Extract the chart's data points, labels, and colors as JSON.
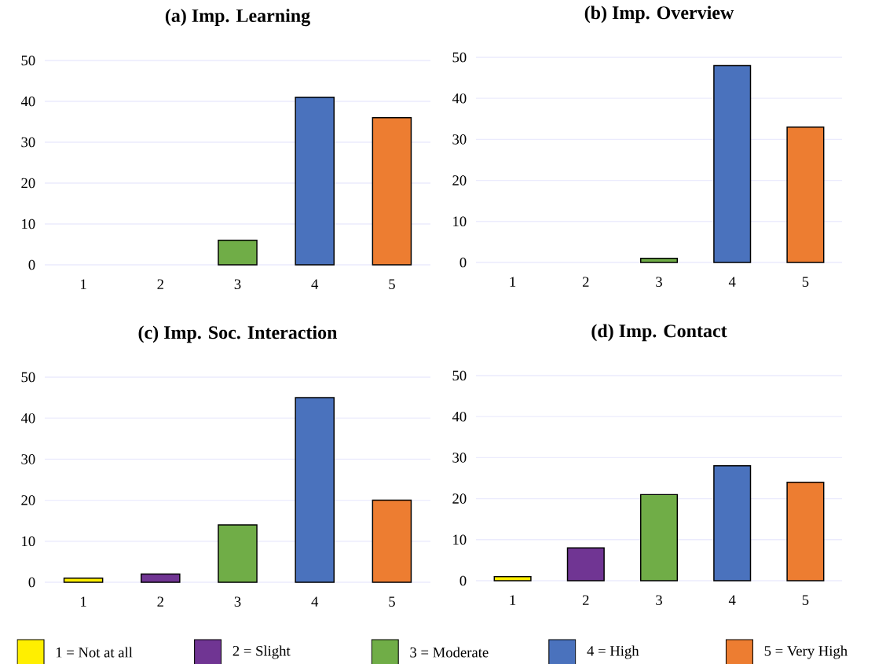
{
  "chart_data": [
    {
      "type": "bar",
      "title": "(a) Imp. Learning",
      "categories": [
        "1",
        "2",
        "3",
        "4",
        "5"
      ],
      "ylim": [
        0,
        50
      ],
      "yticks": [
        0,
        10,
        20,
        30,
        40,
        50
      ],
      "grid": "y",
      "legend": "bottom",
      "series": [
        {
          "name": "1 = Not at all",
          "color": "#ffef00",
          "values": [
            0,
            null,
            null,
            null,
            null
          ]
        },
        {
          "name": "2 = Slight",
          "color": "#703593",
          "values": [
            null,
            0,
            null,
            null,
            null
          ]
        },
        {
          "name": "3 = Moderate",
          "color": "#70ad47",
          "values": [
            null,
            null,
            6,
            null,
            null
          ]
        },
        {
          "name": "4 = High",
          "color": "#4a72bd",
          "values": [
            null,
            null,
            null,
            41,
            null
          ]
        },
        {
          "name": "5 = Very High",
          "color": "#ed7d31",
          "values": [
            null,
            null,
            null,
            null,
            36
          ]
        }
      ]
    },
    {
      "type": "bar",
      "title": "(b) Imp. Overview",
      "categories": [
        "1",
        "2",
        "3",
        "4",
        "5"
      ],
      "ylim": [
        0,
        50
      ],
      "yticks": [
        0,
        10,
        20,
        30,
        40,
        50
      ],
      "grid": "y",
      "series": [
        {
          "color": "#ffef00",
          "values": [
            0,
            null,
            null,
            null,
            null
          ]
        },
        {
          "color": "#703593",
          "values": [
            null,
            0,
            null,
            null,
            null
          ]
        },
        {
          "color": "#70ad47",
          "values": [
            null,
            null,
            1,
            null,
            null
          ]
        },
        {
          "color": "#4a72bd",
          "values": [
            null,
            null,
            null,
            48,
            null
          ]
        },
        {
          "color": "#ed7d31",
          "values": [
            null,
            null,
            null,
            null,
            33
          ]
        }
      ]
    },
    {
      "type": "bar",
      "title": "(c) Imp. Soc. Interaction",
      "categories": [
        "1",
        "2",
        "3",
        "4",
        "5"
      ],
      "ylim": [
        0,
        50
      ],
      "yticks": [
        0,
        10,
        20,
        30,
        40,
        50
      ],
      "grid": "y",
      "series": [
        {
          "color": "#ffef00",
          "values": [
            1,
            null,
            null,
            null,
            null
          ]
        },
        {
          "color": "#703593",
          "values": [
            null,
            2,
            null,
            null,
            null
          ]
        },
        {
          "color": "#70ad47",
          "values": [
            null,
            null,
            14,
            null,
            null
          ]
        },
        {
          "color": "#4a72bd",
          "values": [
            null,
            null,
            null,
            45,
            null
          ]
        },
        {
          "color": "#ed7d31",
          "values": [
            null,
            null,
            null,
            null,
            20
          ]
        }
      ]
    },
    {
      "type": "bar",
      "title": "(d) Imp. Contact",
      "categories": [
        "1",
        "2",
        "3",
        "4",
        "5"
      ],
      "ylim": [
        0,
        50
      ],
      "yticks": [
        0,
        10,
        20,
        30,
        40,
        50
      ],
      "grid": "y",
      "series": [
        {
          "color": "#ffef00",
          "values": [
            1,
            null,
            null,
            null,
            null
          ]
        },
        {
          "color": "#703593",
          "values": [
            null,
            8,
            null,
            null,
            null
          ]
        },
        {
          "color": "#70ad47",
          "values": [
            null,
            null,
            21,
            null,
            null
          ]
        },
        {
          "color": "#4a72bd",
          "values": [
            null,
            null,
            null,
            28,
            null
          ]
        },
        {
          "color": "#ed7d31",
          "values": [
            null,
            null,
            null,
            null,
            24
          ]
        }
      ]
    }
  ]
}
